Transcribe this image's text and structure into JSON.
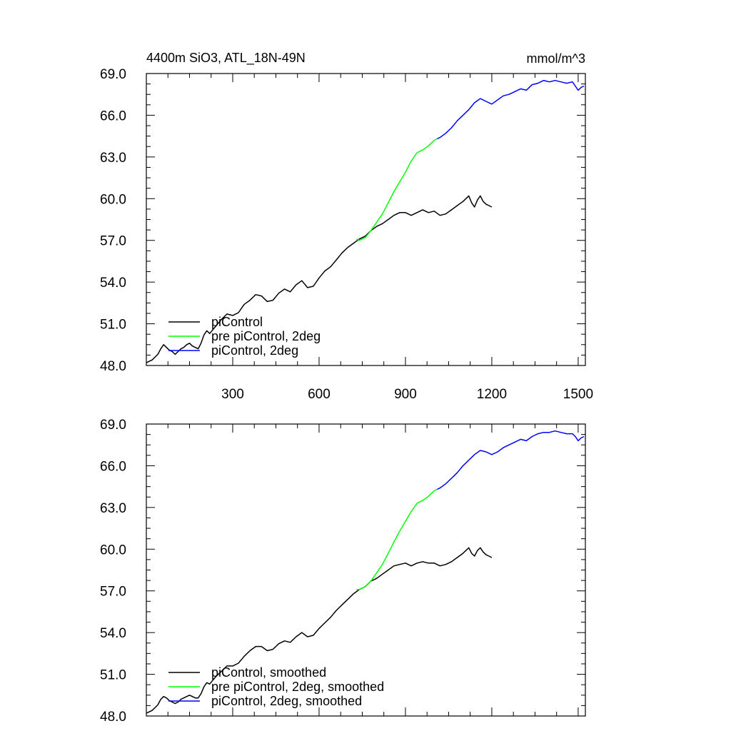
{
  "chart_data": [
    {
      "type": "line",
      "title": "4400m SiO3, ATL_18N-49N",
      "units": "mmol/m^3",
      "xlim": [
        0,
        1525
      ],
      "ylim": [
        48.0,
        69.0
      ],
      "x_ticks": [
        "300",
        "600",
        "900",
        "1200",
        "1500"
      ],
      "y_ticks": [
        "48.0",
        "51.0",
        "54.0",
        "57.0",
        "60.0",
        "63.0",
        "66.0",
        "69.0"
      ],
      "legend_position": "bottom-left",
      "series": [
        {
          "name": "piControl",
          "color": "#000000",
          "x": [
            0,
            20,
            40,
            50,
            60,
            70,
            80,
            90,
            100,
            110,
            120,
            130,
            140,
            150,
            160,
            170,
            180,
            190,
            200,
            210,
            220,
            240,
            260,
            280,
            300,
            320,
            340,
            360,
            380,
            400,
            420,
            440,
            460,
            480,
            500,
            520,
            540,
            560,
            580,
            600,
            620,
            640,
            660,
            680,
            700,
            720,
            740,
            760,
            780,
            800,
            820,
            840,
            860,
            880,
            900,
            920,
            940,
            960,
            980,
            1000,
            1020,
            1040,
            1060,
            1080,
            1100,
            1120,
            1130,
            1140,
            1150,
            1160,
            1170,
            1180,
            1190,
            1200
          ],
          "values": [
            48.2,
            48.4,
            48.8,
            49.2,
            49.5,
            49.3,
            49.1,
            49.0,
            48.8,
            49.0,
            49.2,
            49.3,
            49.5,
            49.6,
            49.4,
            49.3,
            49.2,
            49.6,
            50.2,
            50.5,
            50.3,
            50.8,
            51.3,
            51.7,
            51.6,
            51.8,
            52.4,
            52.7,
            53.1,
            53.0,
            52.6,
            52.7,
            53.2,
            53.5,
            53.3,
            53.8,
            54.1,
            53.6,
            53.7,
            54.3,
            54.8,
            55.1,
            55.6,
            56.1,
            56.5,
            56.8,
            57.1,
            57.3,
            57.7,
            58.0,
            58.2,
            58.5,
            58.8,
            59.0,
            59.0,
            58.8,
            59.0,
            59.2,
            59.0,
            59.1,
            58.8,
            58.9,
            59.2,
            59.5,
            59.8,
            60.2,
            59.7,
            59.4,
            59.9,
            60.2,
            59.8,
            59.6,
            59.5,
            59.4
          ]
        },
        {
          "name": "pre piControl, 2deg",
          "color": "#00ff00",
          "x": [
            730,
            740,
            760,
            780,
            800,
            820,
            840,
            860,
            880,
            900,
            920,
            940,
            960,
            980,
            1000,
            1010
          ],
          "values": [
            57.1,
            57.0,
            57.2,
            57.7,
            58.3,
            58.9,
            59.7,
            60.5,
            61.2,
            61.9,
            62.7,
            63.3,
            63.5,
            63.8,
            64.2,
            64.3
          ]
        },
        {
          "name": "piControl, 2deg",
          "color": "#0000ff",
          "x": [
            1010,
            1020,
            1040,
            1060,
            1080,
            1100,
            1120,
            1140,
            1160,
            1180,
            1200,
            1220,
            1240,
            1260,
            1280,
            1300,
            1320,
            1340,
            1360,
            1380,
            1400,
            1420,
            1440,
            1460,
            1480,
            1490,
            1500,
            1510,
            1520
          ],
          "values": [
            64.3,
            64.4,
            64.7,
            65.1,
            65.6,
            66.0,
            66.4,
            66.9,
            67.2,
            67.0,
            66.8,
            67.1,
            67.4,
            67.5,
            67.7,
            67.9,
            67.8,
            68.2,
            68.3,
            68.5,
            68.4,
            68.5,
            68.4,
            68.3,
            68.4,
            68.1,
            67.8,
            68.0,
            68.1
          ]
        }
      ]
    },
    {
      "type": "line",
      "xlim": [
        0,
        1525
      ],
      "ylim": [
        48.0,
        69.0
      ],
      "y_ticks": [
        "48.0",
        "51.0",
        "54.0",
        "57.0",
        "60.0",
        "63.0",
        "66.0",
        "69.0"
      ],
      "legend_position": "bottom-left",
      "series": [
        {
          "name": "piControl, smoothed",
          "color": "#000000",
          "x": [
            0,
            20,
            40,
            50,
            60,
            70,
            80,
            90,
            100,
            110,
            120,
            130,
            140,
            150,
            160,
            170,
            180,
            190,
            200,
            210,
            220,
            240,
            260,
            280,
            300,
            320,
            340,
            360,
            380,
            400,
            420,
            440,
            460,
            480,
            500,
            520,
            540,
            560,
            580,
            600,
            620,
            640,
            660,
            680,
            700,
            720,
            740,
            760,
            780,
            800,
            820,
            840,
            860,
            880,
            900,
            920,
            940,
            960,
            980,
            1000,
            1020,
            1040,
            1060,
            1080,
            1100,
            1120,
            1130,
            1140,
            1150,
            1160,
            1170,
            1180,
            1190,
            1200
          ],
          "values": [
            48.2,
            48.4,
            48.8,
            49.2,
            49.4,
            49.3,
            49.1,
            49.0,
            48.9,
            49.0,
            49.2,
            49.3,
            49.4,
            49.5,
            49.4,
            49.3,
            49.3,
            49.6,
            50.1,
            50.4,
            50.3,
            50.8,
            51.2,
            51.6,
            51.6,
            51.8,
            52.3,
            52.7,
            53.0,
            53.0,
            52.7,
            52.8,
            53.2,
            53.4,
            53.3,
            53.7,
            54.0,
            53.7,
            53.8,
            54.3,
            54.7,
            55.1,
            55.6,
            56.0,
            56.4,
            56.8,
            57.1,
            57.3,
            57.7,
            57.9,
            58.2,
            58.5,
            58.8,
            58.9,
            59.0,
            58.8,
            59.0,
            59.1,
            59.0,
            59.0,
            58.8,
            58.9,
            59.1,
            59.4,
            59.7,
            60.1,
            59.7,
            59.5,
            59.9,
            60.1,
            59.8,
            59.6,
            59.5,
            59.4
          ]
        },
        {
          "name": "pre piControl, 2deg, smoothed",
          "color": "#00ff00",
          "x": [
            730,
            740,
            760,
            780,
            800,
            820,
            840,
            860,
            880,
            900,
            920,
            940,
            960,
            980,
            1000,
            1010
          ],
          "values": [
            57.1,
            57.1,
            57.3,
            57.7,
            58.3,
            58.9,
            59.7,
            60.5,
            61.3,
            62.0,
            62.7,
            63.3,
            63.5,
            63.8,
            64.2,
            64.3
          ]
        },
        {
          "name": "piControl, 2deg, smoothed",
          "color": "#0000ff",
          "x": [
            1010,
            1020,
            1040,
            1060,
            1080,
            1100,
            1120,
            1140,
            1160,
            1180,
            1200,
            1220,
            1240,
            1260,
            1280,
            1300,
            1320,
            1340,
            1360,
            1380,
            1400,
            1420,
            1440,
            1460,
            1480,
            1490,
            1500,
            1510,
            1520
          ],
          "values": [
            64.3,
            64.4,
            64.7,
            65.1,
            65.5,
            66.0,
            66.4,
            66.8,
            67.1,
            67.0,
            66.8,
            67.0,
            67.3,
            67.5,
            67.7,
            67.9,
            67.8,
            68.1,
            68.3,
            68.4,
            68.4,
            68.5,
            68.4,
            68.3,
            68.3,
            68.1,
            67.8,
            68.0,
            68.1
          ]
        }
      ]
    }
  ]
}
